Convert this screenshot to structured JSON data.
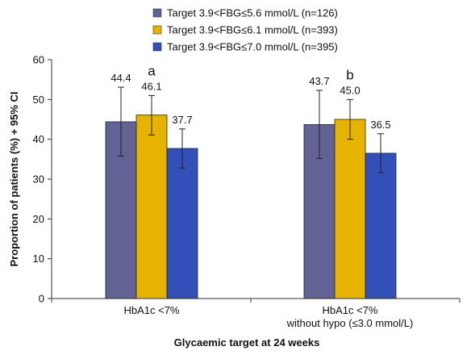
{
  "chart_data": {
    "type": "bar",
    "categories": [
      [
        "HbA1c <7%"
      ],
      [
        "HbA1c <7%",
        "without hypo (≤3.0 mmol/L)"
      ]
    ],
    "series": [
      {
        "name": "Target 3.9<FBG≤5.6 mmol/L (n=126)",
        "color": "#626294",
        "values": [
          44.4,
          43.7
        ],
        "labels": [
          "44.4",
          "43.7"
        ],
        "ci_low": [
          35.8,
          35.2
        ],
        "ci_high": [
          53.1,
          52.3
        ]
      },
      {
        "name": "Target 3.9<FBG≤6.1 mmol/L (n=393)",
        "color": "#e6b400",
        "values": [
          46.1,
          45.0
        ],
        "labels": [
          "46.1",
          "45.0"
        ],
        "ci_low": [
          41.1,
          40.0
        ],
        "ci_high": [
          51.0,
          50.0
        ]
      },
      {
        "name": "Target 3.9<FBG≤7.0 mmol/L (n=395)",
        "color": "#3350b8",
        "values": [
          37.7,
          36.5
        ],
        "labels": [
          "37.7",
          "36.5"
        ],
        "ci_low": [
          32.8,
          31.6
        ],
        "ci_high": [
          42.6,
          41.4
        ]
      }
    ],
    "annotations": [
      "a",
      "b"
    ],
    "ylabel": "Proportion of patients (%) + 95% CI",
    "xlabel": "Glycaemic target at 24 weeks",
    "ylim": [
      0,
      60
    ],
    "yticks": [
      0,
      10,
      20,
      30,
      40,
      50,
      60
    ],
    "grid": false,
    "legend_position": "top"
  }
}
